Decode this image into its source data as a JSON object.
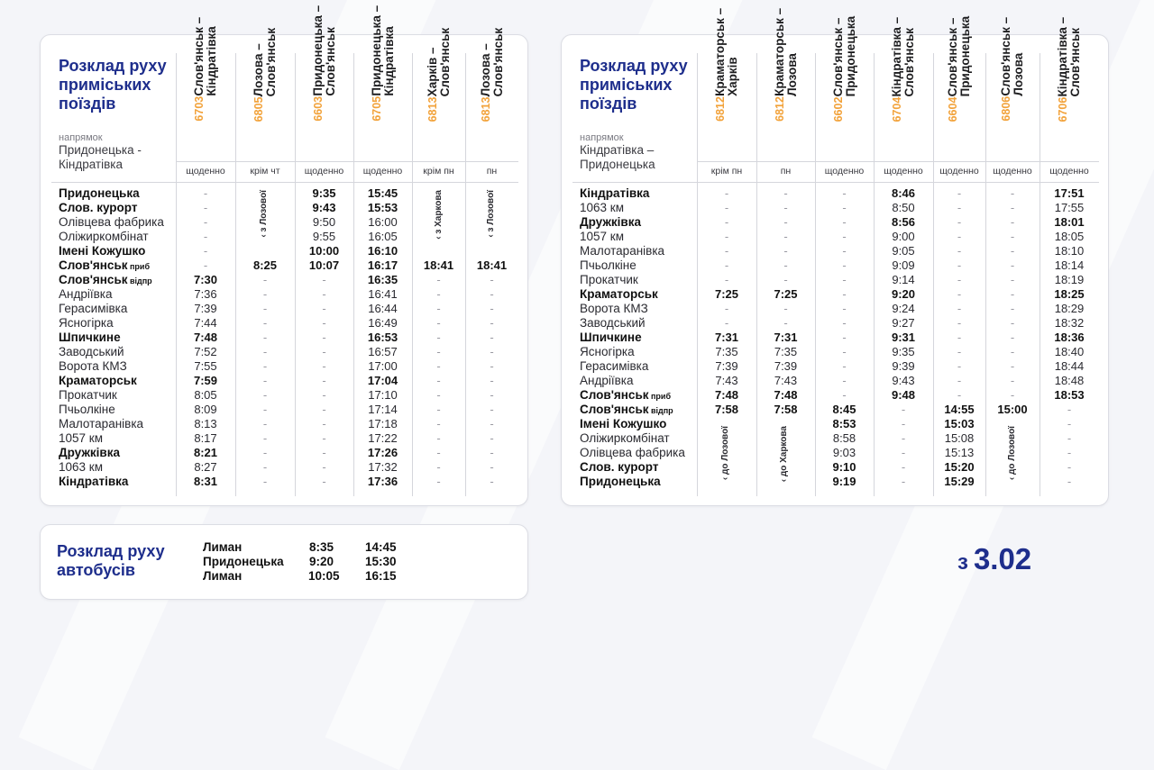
{
  "title": "Розклад руху приміських поїздів",
  "direction_label": "напрямок",
  "left": {
    "direction": [
      "Придонецька -",
      "Кіндратівка"
    ],
    "columns": [
      {
        "num": "6703",
        "route": "Слов'янськ –\nКіндратівка",
        "days": "щоденно"
      },
      {
        "num": "6805",
        "route": "Лозова –\nСлов'янськ",
        "days": "крім чт"
      },
      {
        "num": "6603",
        "route": "Придонецька –\nСлов'янськ",
        "days": "щоденно"
      },
      {
        "num": "6705",
        "route": "Придонецька –\nКіндратівка",
        "days": "щоденно"
      },
      {
        "num": "6813",
        "route": "Харків –\nСлов'янськ",
        "days": "крім пн"
      },
      {
        "num": "6813",
        "route": "Лозова –\nСлов'янськ",
        "days": "пн"
      }
    ],
    "stations": [
      "Придонецька",
      "Слов. курорт",
      "Олівцева фабрика",
      "Оліжиркомбінат",
      "Імені Кожушко",
      "Слов'янськ|приб",
      "Слов'янськ|відпр",
      "Андріївка",
      "Герасимівка",
      "Ясногірка",
      "Шпичкине",
      "Заводський",
      "Ворота КМЗ",
      "Краматорськ",
      "Прокатчик",
      "Пчьолкіне",
      "Малотаранівка",
      "1057 км",
      "Дружківка",
      "1063 км",
      "Кіндратівка"
    ],
    "bold": [
      0,
      1,
      4,
      5,
      6,
      10,
      13,
      18,
      20
    ],
    "times": [
      [
        "-",
        "-",
        "-",
        "-",
        "-",
        "-",
        "7:30",
        "7:36",
        "7:39",
        "7:44",
        "7:48",
        "7:52",
        "7:55",
        "7:59",
        "8:05",
        "8:09",
        "8:13",
        "8:17",
        "8:21",
        "8:27",
        "8:31"
      ],
      [
        "",
        "",
        "",
        "",
        "",
        "8:25",
        "-",
        "-",
        "-",
        "-",
        "-",
        "-",
        "-",
        "-",
        "-",
        "-",
        "-",
        "-",
        "-",
        "-",
        "-"
      ],
      [
        "9:35",
        "9:43",
        "9:50",
        "9:55",
        "10:00",
        "10:07",
        "-",
        "-",
        "-",
        "-",
        "-",
        "-",
        "-",
        "-",
        "-",
        "-",
        "-",
        "-",
        "-",
        "-",
        "-"
      ],
      [
        "15:45",
        "15:53",
        "16:00",
        "16:05",
        "16:10",
        "16:17",
        "16:35",
        "16:41",
        "16:44",
        "16:49",
        "16:53",
        "16:57",
        "17:00",
        "17:04",
        "17:10",
        "17:14",
        "17:18",
        "17:22",
        "17:26",
        "17:32",
        "17:36"
      ],
      [
        "",
        "",
        "",
        "",
        "",
        "18:41",
        "-",
        "-",
        "-",
        "-",
        "-",
        "-",
        "-",
        "-",
        "-",
        "-",
        "-",
        "-",
        "-",
        "-",
        "-"
      ],
      [
        "",
        "",
        "",
        "",
        "",
        "18:41",
        "-",
        "-",
        "-",
        "-",
        "-",
        "-",
        "-",
        "-",
        "-",
        "-",
        "-",
        "-",
        "-",
        "-",
        "-"
      ]
    ],
    "notes": [
      "‹ з Лозової",
      "‹ з Харкова",
      "‹ з Лозової"
    ]
  },
  "right": {
    "direction": [
      "Кіндратівка –",
      "Придонецька"
    ],
    "columns": [
      {
        "num": "6812",
        "route": "Краматорськ –\nХарків",
        "days": "крім пн"
      },
      {
        "num": "6812",
        "route": "Краматорськ –\nЛозова",
        "days": "пн"
      },
      {
        "num": "6602",
        "route": "Слов'янськ –\nПридонецька",
        "days": "щоденно"
      },
      {
        "num": "6704",
        "route": "Кіндратівка –\nСлов'янськ",
        "days": "щоденно"
      },
      {
        "num": "6604",
        "route": "Слов'янськ –\nПридонецька",
        "days": "щоденно"
      },
      {
        "num": "6806",
        "route": "Слов'янськ –\nЛозова",
        "days": "щоденно"
      },
      {
        "num": "6706",
        "route": "Кіндратівка –\nСлов'янськ",
        "days": "щоденно"
      }
    ],
    "stations": [
      "Кіндратівка",
      "1063 км",
      "Дружківка",
      "1057 км",
      "Малотаранівка",
      "Пчьолкіне",
      "Прокатчик",
      "Краматорськ",
      "Ворота КМЗ",
      "Заводський",
      "Шпичкине",
      "Ясногірка",
      "Герасимівка",
      "Андріївка",
      "Слов'янськ|приб",
      "Слов'янськ|відпр",
      "Імені Кожушко",
      "Оліжиркомбінат",
      "Олівцева фабрика",
      "Слов. курорт",
      "Придонецька"
    ],
    "bold": [
      0,
      2,
      7,
      10,
      14,
      15,
      16,
      19,
      20
    ],
    "times": [
      [
        "-",
        "-",
        "-",
        "-",
        "-",
        "-",
        "-",
        "7:25",
        "-",
        "-",
        "7:31",
        "7:35",
        "7:39",
        "7:43",
        "7:48",
        "7:58",
        "",
        "",
        "",
        "",
        ""
      ],
      [
        "-",
        "-",
        "-",
        "-",
        "-",
        "-",
        "-",
        "7:25",
        "-",
        "-",
        "7:31",
        "7:35",
        "7:39",
        "7:43",
        "7:48",
        "7:58",
        "",
        "",
        "",
        "",
        ""
      ],
      [
        "-",
        "-",
        "-",
        "-",
        "-",
        "-",
        "-",
        "-",
        "-",
        "-",
        "-",
        "-",
        "-",
        "-",
        "-",
        "8:45",
        "8:53",
        "8:58",
        "9:03",
        "9:10",
        "9:19"
      ],
      [
        "8:46",
        "8:50",
        "8:56",
        "9:00",
        "9:05",
        "9:09",
        "9:14",
        "9:20",
        "9:24",
        "9:27",
        "9:31",
        "9:35",
        "9:39",
        "9:43",
        "9:48",
        "-",
        "-",
        "-",
        "-",
        "-",
        "-"
      ],
      [
        "-",
        "-",
        "-",
        "-",
        "-",
        "-",
        "-",
        "-",
        "-",
        "-",
        "-",
        "-",
        "-",
        "-",
        "-",
        "14:55",
        "15:03",
        "15:08",
        "15:13",
        "15:20",
        "15:29"
      ],
      [
        "-",
        "-",
        "-",
        "-",
        "-",
        "-",
        "-",
        "-",
        "-",
        "-",
        "-",
        "-",
        "-",
        "-",
        "-",
        "15:00",
        "",
        "",
        "",
        "",
        ""
      ],
      [
        "17:51",
        "17:55",
        "18:01",
        "18:05",
        "18:10",
        "18:14",
        "18:19",
        "18:25",
        "18:29",
        "18:32",
        "18:36",
        "18:40",
        "18:44",
        "18:48",
        "18:53",
        "-",
        "-",
        "-",
        "-",
        "-",
        "-"
      ]
    ],
    "notes": [
      "‹ до Лозової",
      "‹ до Харкова",
      "‹ до Лозової"
    ]
  },
  "bus": {
    "title": [
      "Розклад руху",
      "автобусів"
    ],
    "rows": [
      {
        "station": "Лиман",
        "t1": "8:35",
        "t2": "14:45"
      },
      {
        "station": "Придонецька",
        "t1": "9:20",
        "t2": "15:30"
      },
      {
        "station": "Лиман",
        "t1": "10:05",
        "t2": "16:15"
      }
    ]
  },
  "since": {
    "prefix": "з",
    "date": "3.02"
  }
}
